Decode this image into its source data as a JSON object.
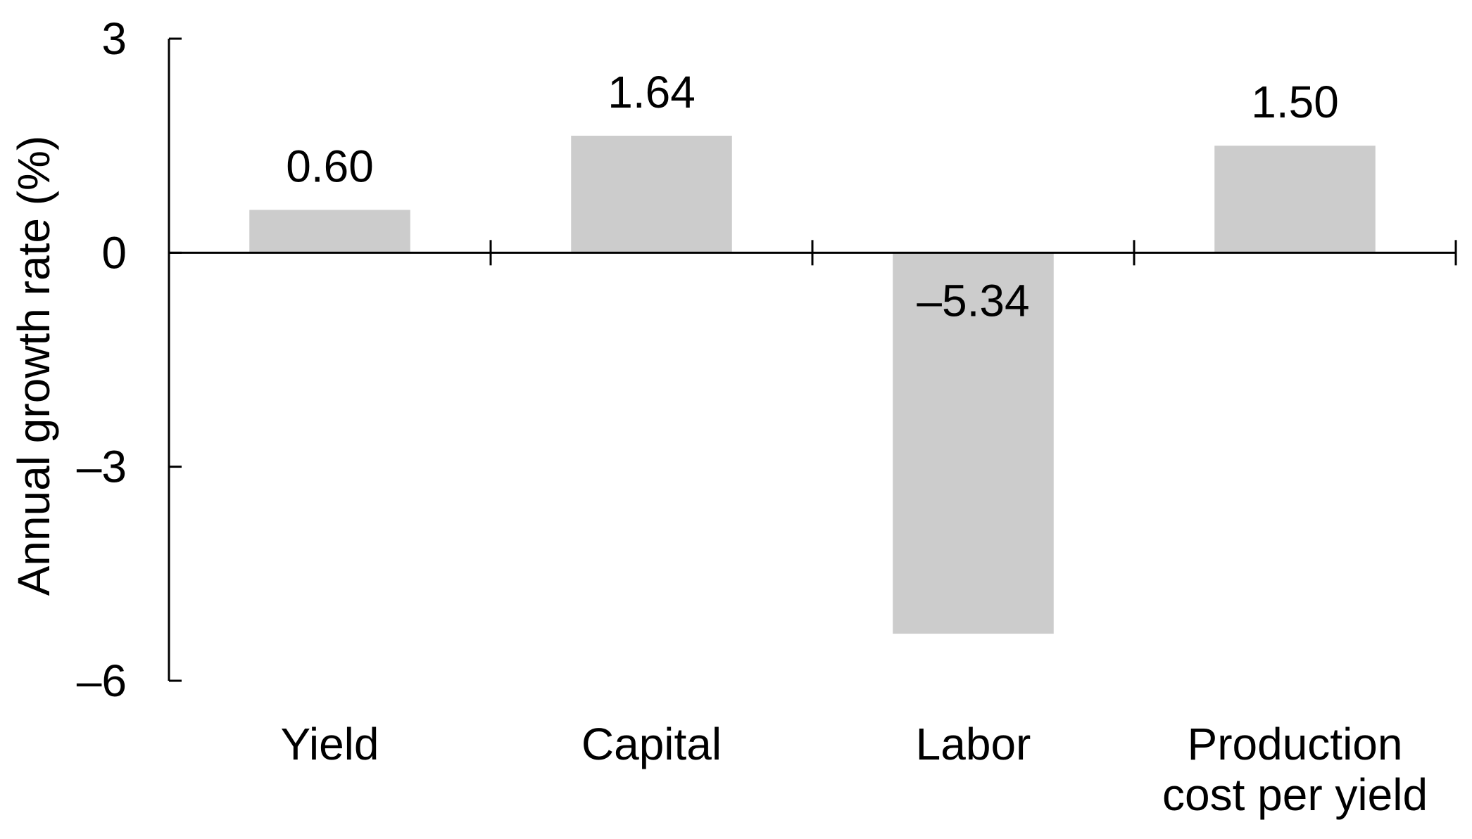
{
  "chart_data": {
    "type": "bar",
    "title": "",
    "xlabel": "",
    "ylabel": "Annual growth rate (%)",
    "categories": [
      [
        "Yield"
      ],
      [
        "Capital"
      ],
      [
        "Labor"
      ],
      [
        "Production",
        "cost per yield"
      ]
    ],
    "values": [
      0.6,
      1.64,
      -5.34,
      1.5
    ],
    "data_labels": [
      "0.60",
      "1.64",
      "–5.34",
      "1.50"
    ],
    "ylim": [
      -6,
      3
    ],
    "yticks": [
      3,
      0,
      -3,
      -6
    ],
    "ytick_labels": [
      "3",
      "0",
      "–3",
      "–6"
    ],
    "grid": false,
    "legend": false
  },
  "colors": {
    "bar": "#cccccc",
    "axis": "#000000"
  }
}
